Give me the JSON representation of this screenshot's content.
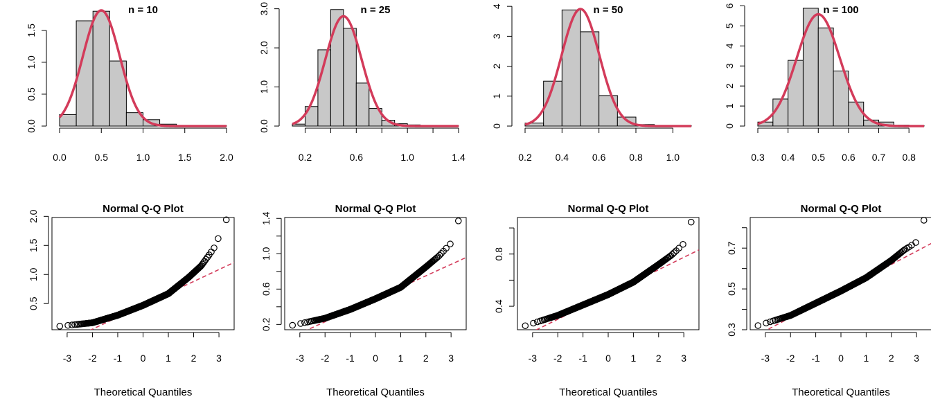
{
  "colors": {
    "bar_fill": "#c8c8c8",
    "curve": "#d33b5a",
    "reference_line": "#d33b5a",
    "points": "#000000"
  },
  "chart_data": [
    {
      "type": "bar",
      "title": "n = 10",
      "xlabel": "",
      "ylabel": "",
      "xlim": [
        0,
        2
      ],
      "ylim": [
        0,
        1.9
      ],
      "xticks": [
        0,
        0.5,
        1,
        1.5,
        2
      ],
      "xtick_labels": [
        "0.0",
        "0.5",
        "1.0",
        "1.5",
        "2.0"
      ],
      "yticks": [
        0,
        0.5,
        1,
        1.5
      ],
      "ytick_labels": [
        "0.0",
        "0.5",
        "1.0",
        "1.5"
      ],
      "bin_edges": [
        0,
        0.2,
        0.4,
        0.6,
        0.8,
        1.0,
        1.2,
        1.4,
        1.6,
        1.8,
        2.0
      ],
      "densities": [
        0.18,
        1.65,
        1.8,
        1.02,
        0.21,
        0.1,
        0.03,
        0.01,
        0.005,
        0.003
      ],
      "curve": {
        "kind": "normal-density",
        "mean": 0.5,
        "sd": 0.22,
        "x_range": [
          0,
          2
        ]
      }
    },
    {
      "type": "bar",
      "title": "n = 25",
      "xlabel": "",
      "ylabel": "",
      "xlim": [
        0.1,
        1.4
      ],
      "ylim": [
        0,
        3.1
      ],
      "xticks": [
        0.2,
        0.6,
        1.0,
        1.4
      ],
      "xtick_labels": [
        "0.2",
        "0.6",
        "1.0",
        "1.4"
      ],
      "minor_xticks": [
        0.4,
        0.8,
        1.2
      ],
      "yticks": [
        0,
        1,
        2,
        3
      ],
      "ytick_labels": [
        "0.0",
        "1.0",
        "2.0",
        "3.0"
      ],
      "bin_edges": [
        0.1,
        0.2,
        0.3,
        0.4,
        0.5,
        0.6,
        0.7,
        0.8,
        0.9,
        1.0,
        1.1,
        1.2,
        1.3,
        1.4
      ],
      "densities": [
        0.05,
        0.5,
        1.95,
        2.98,
        2.5,
        1.1,
        0.45,
        0.15,
        0.06,
        0.03,
        0.01,
        0.005,
        0.003
      ],
      "curve": {
        "kind": "normal-density",
        "mean": 0.5,
        "sd": 0.142,
        "x_range": [
          0.1,
          1.4
        ]
      }
    },
    {
      "type": "bar",
      "title": "n = 50",
      "xlabel": "",
      "ylabel": "",
      "xlim": [
        0.2,
        1.1
      ],
      "ylim": [
        0,
        4.05
      ],
      "xticks": [
        0.2,
        0.4,
        0.6,
        0.8,
        1.0
      ],
      "xtick_labels": [
        "0.2",
        "0.4",
        "0.6",
        "0.8",
        "1.0"
      ],
      "yticks": [
        0,
        1,
        2,
        3,
        4
      ],
      "ytick_labels": [
        "0",
        "1",
        "2",
        "3",
        "4"
      ],
      "bin_edges": [
        0.2,
        0.3,
        0.4,
        0.5,
        0.6,
        0.7,
        0.8,
        0.9,
        1.0,
        1.1
      ],
      "densities": [
        0.1,
        1.5,
        3.88,
        3.15,
        1.02,
        0.3,
        0.05,
        0.02,
        0.01
      ],
      "curve": {
        "kind": "normal-density",
        "mean": 0.5,
        "sd": 0.102,
        "x_range": [
          0.2,
          1.1
        ]
      }
    },
    {
      "type": "bar",
      "title": "n = 100",
      "xlabel": "",
      "ylabel": "",
      "xlim": [
        0.3,
        0.85
      ],
      "ylim": [
        0,
        6.05
      ],
      "xticks": [
        0.3,
        0.4,
        0.5,
        0.6,
        0.7,
        0.8
      ],
      "xtick_labels": [
        "0.3",
        "0.4",
        "0.5",
        "0.6",
        "0.7",
        "0.8"
      ],
      "yticks": [
        0,
        1,
        2,
        3,
        4,
        5,
        6
      ],
      "ytick_labels": [
        "0",
        "1",
        "2",
        "3",
        "4",
        "5",
        "6"
      ],
      "bin_edges": [
        0.3,
        0.35,
        0.4,
        0.45,
        0.5,
        0.55,
        0.6,
        0.65,
        0.7,
        0.75,
        0.8,
        0.85
      ],
      "densities": [
        0.2,
        1.35,
        3.28,
        5.88,
        4.9,
        2.75,
        1.2,
        0.3,
        0.2,
        0.05,
        0.02
      ],
      "curve": {
        "kind": "normal-density",
        "mean": 0.5,
        "sd": 0.0715,
        "x_range": [
          0.3,
          0.85
        ]
      }
    },
    {
      "type": "scatter",
      "title": "Normal Q-Q Plot",
      "xlabel": "Theoretical Quantiles",
      "ylabel": "",
      "xlim": [
        -3.6,
        3.6
      ],
      "ylim": [
        0.05,
        1.98
      ],
      "xticks": [
        -3,
        -2,
        -1,
        0,
        1,
        2,
        3
      ],
      "xtick_labels": [
        "-3",
        "-2",
        "-1",
        "0",
        "1",
        "2",
        "3"
      ],
      "yticks": [
        0.5,
        1.0,
        1.5,
        2.0
      ],
      "ytick_labels": [
        "0.5",
        "1.0",
        "1.5",
        "2.0"
      ],
      "sample": {
        "n_points": 1000,
        "quantile_curve": {
          "knots_x": [
            -3.3,
            -2.0,
            -1.0,
            0.0,
            1.0,
            1.8,
            2.3,
            2.8,
            3.3
          ],
          "knots_y": [
            0.11,
            0.17,
            0.3,
            0.47,
            0.67,
            0.95,
            1.15,
            1.45,
            1.95
          ]
        }
      },
      "reference_line": {
        "intercept": 0.47,
        "slope": 0.205
      }
    },
    {
      "type": "scatter",
      "title": "Normal Q-Q Plot",
      "xlabel": "Theoretical Quantiles",
      "ylabel": "",
      "xlim": [
        -3.6,
        3.6
      ],
      "ylim": [
        0.14,
        1.41
      ],
      "xticks": [
        -3,
        -2,
        -1,
        0,
        1,
        2,
        3
      ],
      "xtick_labels": [
        "-3",
        "-2",
        "-1",
        "0",
        "1",
        "2",
        "3"
      ],
      "yticks": [
        0.2,
        0.6,
        1.0,
        1.4
      ],
      "ytick_labels": [
        "0.2",
        "0.6",
        "1.0",
        "1.4"
      ],
      "minor_yticks": [
        0.4,
        0.8,
        1.2
      ],
      "sample": {
        "n_points": 1000,
        "quantile_curve": {
          "knots_x": [
            -3.3,
            -2.0,
            -1.0,
            0.0,
            1.0,
            2.0,
            2.5,
            3.0,
            3.3
          ],
          "knots_y": [
            0.19,
            0.27,
            0.37,
            0.49,
            0.62,
            0.85,
            0.97,
            1.12,
            1.38
          ]
        }
      },
      "reference_line": {
        "intercept": 0.49,
        "slope": 0.13
      }
    },
    {
      "type": "scatter",
      "title": "Normal Q-Q Plot",
      "xlabel": "Theoretical Quantiles",
      "ylabel": "",
      "xlim": [
        -3.6,
        3.6
      ],
      "ylim": [
        0.22,
        1.08
      ],
      "xticks": [
        -3,
        -2,
        -1,
        0,
        1,
        2,
        3
      ],
      "xtick_labels": [
        "-3",
        "-2",
        "-1",
        "0",
        "1",
        "2",
        "3"
      ],
      "yticks": [
        0.4,
        0.8
      ],
      "ytick_labels": [
        "0.4",
        "0.8"
      ],
      "minor_yticks": [
        0.6,
        1.0
      ],
      "sample": {
        "n_points": 1000,
        "quantile_curve": {
          "knots_x": [
            -3.3,
            -2.0,
            -1.0,
            0.0,
            1.0,
            2.0,
            2.5,
            3.0,
            3.3
          ],
          "knots_y": [
            0.25,
            0.33,
            0.41,
            0.49,
            0.585,
            0.72,
            0.79,
            0.88,
            1.05
          ]
        }
      },
      "reference_line": {
        "intercept": 0.49,
        "slope": 0.095
      }
    },
    {
      "type": "scatter",
      "title": "Normal Q-Q Plot",
      "xlabel": "Theoretical Quantiles",
      "ylabel": "",
      "xlim": [
        -3.6,
        3.6
      ],
      "ylim": [
        0.3,
        0.85
      ],
      "xticks": [
        -3,
        -2,
        -1,
        0,
        1,
        2,
        3
      ],
      "xtick_labels": [
        "-3",
        "-2",
        "-1",
        "0",
        "1",
        "2",
        "3"
      ],
      "yticks": [
        0.3,
        0.5,
        0.7
      ],
      "ytick_labels": [
        "0.3",
        "0.5",
        "0.7"
      ],
      "minor_yticks": [
        0.4,
        0.6,
        0.8
      ],
      "sample": {
        "n_points": 1000,
        "quantile_curve": {
          "knots_x": [
            -3.3,
            -2.0,
            -1.0,
            0.0,
            1.0,
            2.0,
            2.5,
            3.0,
            3.3
          ],
          "knots_y": [
            0.32,
            0.37,
            0.43,
            0.49,
            0.555,
            0.64,
            0.69,
            0.73,
            0.84
          ]
        }
      },
      "reference_line": {
        "intercept": 0.49,
        "slope": 0.065
      }
    }
  ]
}
